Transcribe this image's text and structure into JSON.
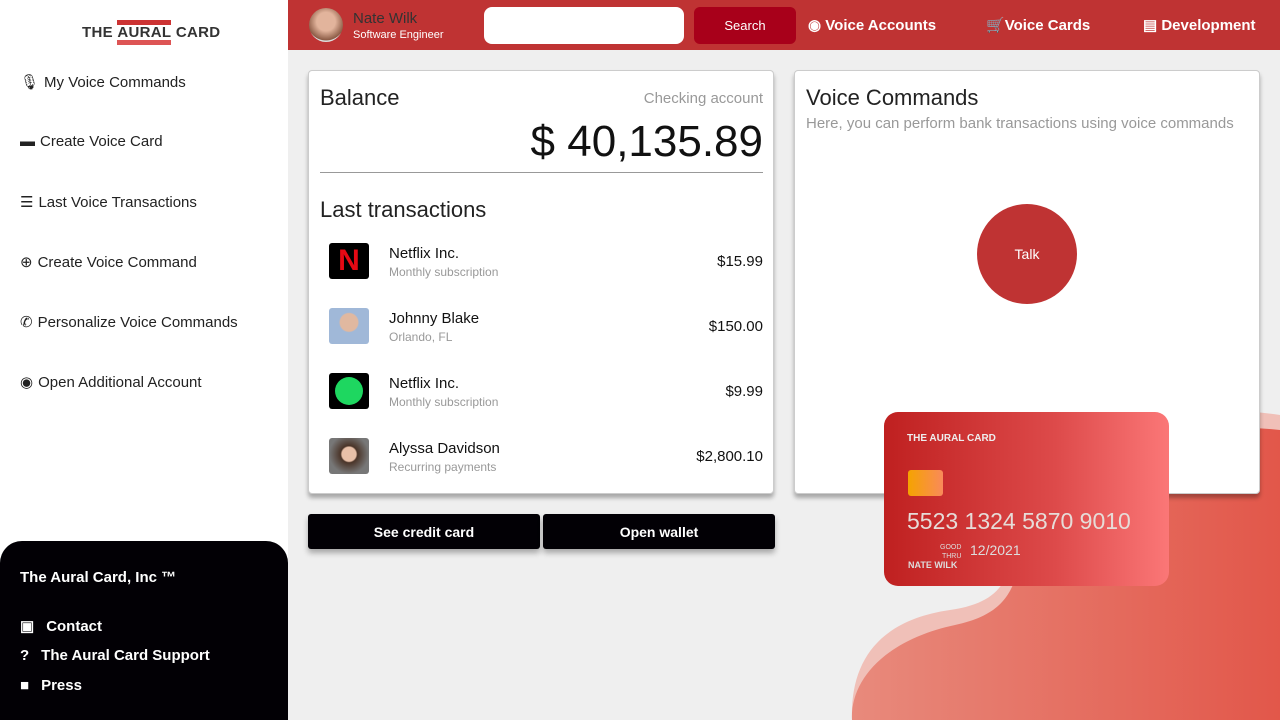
{
  "brand": {
    "logo_pre": "THE ",
    "logo_mark": "AURAL",
    "logo_post": " CARD"
  },
  "sidebar": {
    "items": [
      {
        "label": "My Voice Commands",
        "icon": "microphone-icon",
        "glyph": "🎙"
      },
      {
        "label": "Create Voice Card",
        "icon": "credit-card-icon",
        "glyph": "▬"
      },
      {
        "label": "Last Voice Transactions",
        "icon": "list-icon",
        "glyph": "☰"
      },
      {
        "label": "Create Voice Command",
        "icon": "plus-circle-icon",
        "glyph": "⊕"
      },
      {
        "label": "Personalize Voice Commands",
        "icon": "phone-volume-icon",
        "glyph": "✆"
      },
      {
        "label": "Open Additional Account",
        "icon": "user-circle-icon",
        "glyph": "◉"
      }
    ],
    "footer": {
      "title": "The Aural Card, Inc ™",
      "items": [
        {
          "label": "Contact",
          "icon": "address-book-icon",
          "glyph": "▣"
        },
        {
          "label": "The Aural Card Support",
          "icon": "question-circle-icon",
          "glyph": "?"
        },
        {
          "label": "Press",
          "icon": "video-icon",
          "glyph": "■"
        }
      ]
    }
  },
  "header": {
    "user_name": "Nate Wilk",
    "user_role": "Software Engineer",
    "search_placeholder": "",
    "search_label": "Search",
    "nav": [
      {
        "label": "Voice Accounts",
        "icon": "user-circle-icon"
      },
      {
        "label": "Voice Cards",
        "icon": "cart-icon"
      },
      {
        "label": "Development",
        "icon": "code-file-icon"
      }
    ]
  },
  "balance": {
    "title": "Balance",
    "account": "Checking account",
    "currency": "$",
    "amount": "40,135.89"
  },
  "transactions": {
    "title": "Last transactions",
    "items": [
      {
        "name": "Netflix Inc.",
        "sub": "Monthly subscription",
        "amount": "$15.99",
        "icon": "netflix-logo"
      },
      {
        "name": "Johnny Blake",
        "sub": "Orlando, FL",
        "amount": "$150.00",
        "icon": "avatar"
      },
      {
        "name": "Netflix Inc.",
        "sub": "Monthly subscription",
        "amount": "$9.99",
        "icon": "spotify-logo"
      },
      {
        "name": "Alyssa Davidson",
        "sub": "Recurring payments",
        "amount": "$2,800.10",
        "icon": "avatar"
      }
    ]
  },
  "buttons": {
    "credit": "See credit card",
    "wallet": "Open wallet"
  },
  "voice": {
    "title": "Voice Commands",
    "subtitle": "Here, you can perform bank transactions using voice commands",
    "talk": "Talk"
  },
  "card": {
    "brand": "THE AURAL CARD",
    "number": "5523 1324 5870 9010",
    "good": "GOOD",
    "thru": "THRU",
    "expiry": "12/2021",
    "holder": "NATE WILK"
  },
  "colors": {
    "accent": "#bf3333",
    "button": "#a8001a",
    "dark": "#020005"
  }
}
